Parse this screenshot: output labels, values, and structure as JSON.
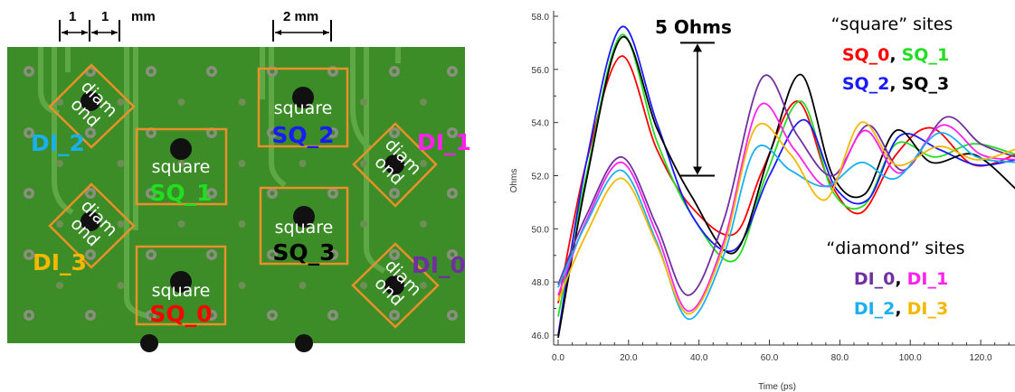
{
  "board": {
    "dims": [
      {
        "value": "1",
        "unit": ""
      },
      {
        "value": "1",
        "unit": "mm"
      },
      {
        "value": "2 mm",
        "unit": ""
      }
    ],
    "colors": {
      "board": "#3c8c27",
      "outline": "#e8902a",
      "trace": "#5ea845",
      "via": "#8a8f80"
    },
    "sites": [
      {
        "id": "sq0",
        "kind": "square",
        "word": "square",
        "label": "SQ_0",
        "color": "#ff0000"
      },
      {
        "id": "sq1",
        "kind": "square",
        "word": "square",
        "label": "SQ_1",
        "color": "#22dd22"
      },
      {
        "id": "sq2",
        "kind": "square",
        "word": "square",
        "label": "SQ_2",
        "color": "#1a1aff"
      },
      {
        "id": "sq3",
        "kind": "square",
        "word": "square",
        "label": "SQ_3",
        "color": "#000000"
      },
      {
        "id": "dtl",
        "kind": "diamond",
        "word1": "diam",
        "word2": "ond"
      },
      {
        "id": "dbl",
        "kind": "diamond",
        "word1": "diam",
        "word2": "ond"
      },
      {
        "id": "dtr",
        "kind": "diamond",
        "word1": "diam",
        "word2": "ond"
      },
      {
        "id": "dbr",
        "kind": "diamond",
        "word1": "diam",
        "word2": "ond"
      }
    ],
    "diamond_labels": [
      {
        "id": "di2",
        "label": "DI_2",
        "color": "#1ab0f0"
      },
      {
        "id": "di3",
        "label": "DI_3",
        "color": "#f5b800"
      },
      {
        "id": "di1",
        "label": "DI_1",
        "color": "#ff22ee"
      },
      {
        "id": "di0",
        "label": "DI_0",
        "color": "#7030a0"
      }
    ]
  },
  "chart_data": {
    "type": "line",
    "xlabel": "Time (ps)",
    "ylabel": "Ohms",
    "xlim": [
      0,
      130
    ],
    "ylim": [
      46,
      58
    ],
    "xticks": [
      "0.0",
      "20.0",
      "40.0",
      "60.0",
      "80.0",
      "100.0",
      "120.0"
    ],
    "yticks": [
      "46.0",
      "48.0",
      "50.0",
      "52.0",
      "54.0",
      "56.0",
      "58.0"
    ],
    "annotation": "5 Ohms",
    "annotation_range": [
      52,
      57
    ],
    "legend": {
      "square_head": "“square” sites",
      "diamond_head": "“diamond” sites",
      "sep": ","
    },
    "series": [
      {
        "name": "SQ_0",
        "color": "#ff0000",
        "x": [
          0,
          8,
          18,
          28,
          38,
          50,
          58,
          68,
          77,
          86,
          96,
          106,
          118,
          130
        ],
        "y": [
          47.2,
          52.5,
          56.5,
          53.0,
          50.8,
          49.8,
          52.2,
          54.8,
          51.8,
          50.6,
          52.8,
          53.8,
          52.4,
          52.8
        ]
      },
      {
        "name": "SQ_1",
        "color": "#22dd22",
        "x": [
          0,
          8,
          18,
          28,
          38,
          50,
          59,
          69,
          78,
          87,
          96,
          107,
          118,
          130
        ],
        "y": [
          46.7,
          52.0,
          57.3,
          53.3,
          50.5,
          48.8,
          52.0,
          54.8,
          51.4,
          50.9,
          53.2,
          52.7,
          53.2,
          52.8
        ]
      },
      {
        "name": "SQ_2",
        "color": "#1a1aff",
        "x": [
          0,
          8,
          18,
          28,
          38,
          50,
          60,
          70,
          79,
          88,
          97,
          108,
          119,
          130
        ],
        "y": [
          46.0,
          52.5,
          57.6,
          54.0,
          50.5,
          49.2,
          52.0,
          54.1,
          51.5,
          51.1,
          53.5,
          53.0,
          52.4,
          52.6
        ]
      },
      {
        "name": "SQ_3",
        "color": "#000000",
        "x": [
          0,
          8,
          18,
          28,
          38,
          50,
          60,
          69,
          78,
          87,
          96,
          106,
          118,
          130
        ],
        "y": [
          45.9,
          51.8,
          57.2,
          53.8,
          51.2,
          49.1,
          52.8,
          55.8,
          52.0,
          51.3,
          53.7,
          52.5,
          52.8,
          51.5
        ]
      },
      {
        "name": "DI_0",
        "color": "#7030a0",
        "x": [
          0,
          8,
          18,
          28,
          37,
          47,
          58,
          68,
          78,
          88,
          98,
          110,
          120,
          130
        ],
        "y": [
          47.9,
          50.5,
          52.7,
          50.1,
          47.5,
          50.3,
          55.7,
          53.5,
          52.0,
          53.9,
          52.2,
          54.2,
          53.2,
          52.7
        ]
      },
      {
        "name": "DI_1",
        "color": "#ff22ee",
        "x": [
          0,
          8,
          18,
          28,
          37,
          47,
          57,
          67,
          77,
          87,
          97,
          109,
          120,
          130
        ],
        "y": [
          47.5,
          50.3,
          52.5,
          49.8,
          46.9,
          49.5,
          54.6,
          53.0,
          51.6,
          53.7,
          52.1,
          53.9,
          52.8,
          52.6
        ]
      },
      {
        "name": "DI_2",
        "color": "#1ab0f0",
        "x": [
          0,
          8,
          18,
          28,
          37,
          47,
          56,
          66,
          76,
          86,
          96,
          108,
          119,
          130
        ],
        "y": [
          47.8,
          50.2,
          52.2,
          49.5,
          46.6,
          49.0,
          53.0,
          52.2,
          51.6,
          52.5,
          51.9,
          53.6,
          52.7,
          52.5
        ]
      },
      {
        "name": "DI_3",
        "color": "#f5b800",
        "x": [
          0,
          8,
          18,
          28,
          37,
          47,
          56,
          66,
          76,
          86,
          96,
          108,
          119,
          130
        ],
        "y": [
          47.3,
          49.8,
          51.9,
          49.4,
          46.8,
          49.3,
          53.8,
          52.8,
          51.1,
          54.0,
          52.4,
          53.1,
          52.6,
          53.0
        ]
      }
    ]
  }
}
